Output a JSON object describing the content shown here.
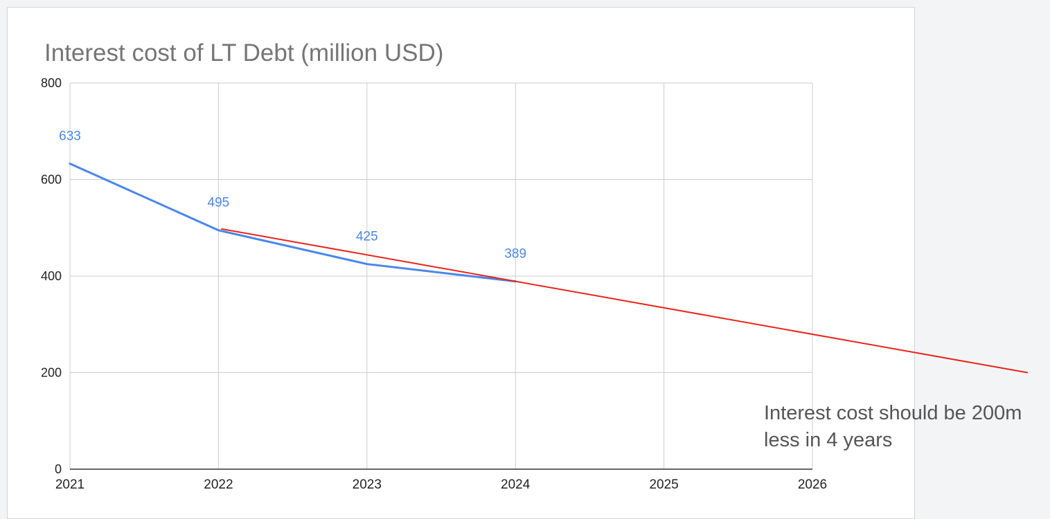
{
  "chart_data": {
    "type": "line",
    "title": "Interest cost of LT Debt (million USD)",
    "xlabel": "",
    "ylabel": "",
    "x": [
      "2021",
      "2022",
      "2023",
      "2024",
      "2025",
      "2026"
    ],
    "ylim": [
      0,
      800
    ],
    "yticks": [
      "0",
      "200",
      "400",
      "600",
      "800"
    ],
    "grid": true,
    "series": [
      {
        "name": "",
        "color": "#4a86e8",
        "x": [
          "2021",
          "2022",
          "2023",
          "2024"
        ],
        "values": [
          633,
          495,
          425,
          389
        ],
        "data_labels": [
          "633",
          "495",
          "425",
          "389"
        ]
      }
    ],
    "trend_line": {
      "color": "#e8231a",
      "start": {
        "x": "2022",
        "y": 495
      },
      "end": {
        "x": "2027.45",
        "y": 200
      }
    },
    "annotation": {
      "line1": "Interest cost should be 200m",
      "line2": "less in 4 years"
    }
  }
}
